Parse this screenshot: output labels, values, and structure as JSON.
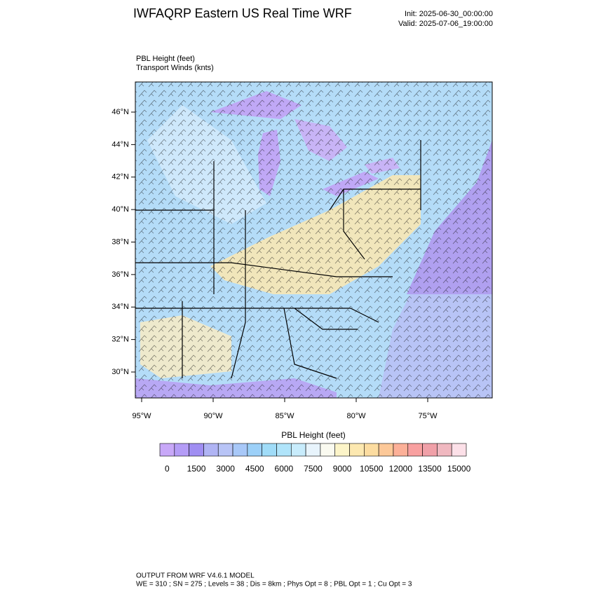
{
  "header": {
    "title": "IWFAQRP Eastern US Real Time WRF",
    "init": "Init: 2025-06-30_00:00:00",
    "valid": "Valid: 2025-07-06_19:00:00"
  },
  "fields": [
    "PBL Height   (feet)",
    "Transport Winds   (knts)"
  ],
  "map": {
    "lat_ticks": [
      "46°N",
      "44°N",
      "42°N",
      "40°N",
      "38°N",
      "36°N",
      "34°N",
      "32°N",
      "30°N"
    ],
    "lon_ticks": [
      "95°W",
      "90°W",
      "85°W",
      "80°W",
      "75°W"
    ]
  },
  "colorbar": {
    "title": "PBL Height  (feet)",
    "ticks": [
      0,
      1500,
      3000,
      4500,
      6000,
      7500,
      9000,
      10500,
      12000,
      13500,
      15000
    ],
    "colors": [
      "#c8a8f8",
      "#b49cf6",
      "#a08ef2",
      "#b0b4f4",
      "#b8c4f6",
      "#a8c8f8",
      "#9cd0f8",
      "#a0dcf8",
      "#b0e4fa",
      "#c8ecfc",
      "#e8f4fc",
      "#fafaf0",
      "#fcf4c8",
      "#fce8b0",
      "#fcdca0",
      "#fcc898",
      "#fcb098",
      "#f8a0a0",
      "#f0a0a8",
      "#f0b8c0",
      "#fce0e8"
    ]
  },
  "footer": [
    "OUTPUT FROM WRF V4.6.1 MODEL",
    "WE = 310 ; SN = 275 ; Levels = 38 ; Dis = 8km ; Phys Opt = 8 ; PBL Opt = 1 ; Cu Opt = 3"
  ]
}
